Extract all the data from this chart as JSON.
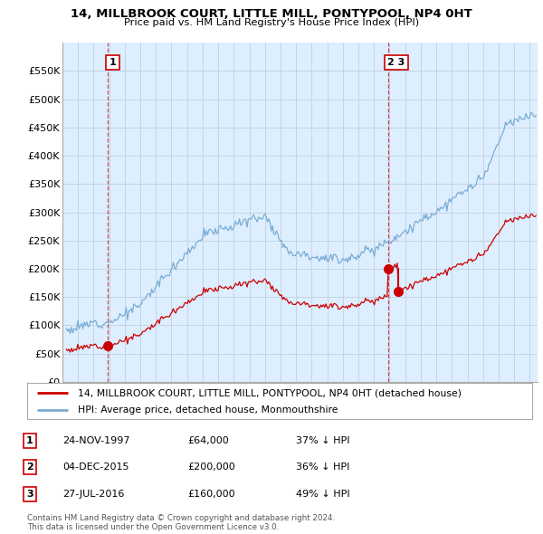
{
  "title": "14, MILLBROOK COURT, LITTLE MILL, PONTYPOOL, NP4 0HT",
  "subtitle": "Price paid vs. HM Land Registry's House Price Index (HPI)",
  "ylim": [
    0,
    600000
  ],
  "yticks": [
    0,
    50000,
    100000,
    150000,
    200000,
    250000,
    300000,
    350000,
    400000,
    450000,
    500000,
    550000
  ],
  "ytick_labels": [
    "£0",
    "£50K",
    "£100K",
    "£150K",
    "£200K",
    "£250K",
    "£300K",
    "£350K",
    "£400K",
    "£450K",
    "£500K",
    "£550K"
  ],
  "xlim_start": 1995.3,
  "xlim_end": 2025.5,
  "hpi_color": "#7aadd4",
  "price_color": "#cc0000",
  "vline_color": "#cc0000",
  "chart_bg": "#ddeeff",
  "purchases": [
    {
      "year": 1997.92,
      "price": 64000,
      "label": "1"
    },
    {
      "year": 2015.92,
      "price": 200000,
      "label": "2"
    },
    {
      "year": 2016.57,
      "price": 160000,
      "label": "3"
    }
  ],
  "legend_property_label": "14, MILLBROOK COURT, LITTLE MILL, PONTYPOOL, NP4 0HT (detached house)",
  "legend_hpi_label": "HPI: Average price, detached house, Monmouthshire",
  "table_rows": [
    {
      "num": "1",
      "date": "24-NOV-1997",
      "price": "£64,000",
      "hpi": "37% ↓ HPI"
    },
    {
      "num": "2",
      "date": "04-DEC-2015",
      "price": "£200,000",
      "hpi": "36% ↓ HPI"
    },
    {
      "num": "3",
      "date": "27-JUL-2016",
      "price": "£160,000",
      "hpi": "49% ↓ HPI"
    }
  ],
  "footnote": "Contains HM Land Registry data © Crown copyright and database right 2024.\nThis data is licensed under the Open Government Licence v3.0.",
  "background_color": "#ffffff",
  "grid_color": "#c0cfe0"
}
